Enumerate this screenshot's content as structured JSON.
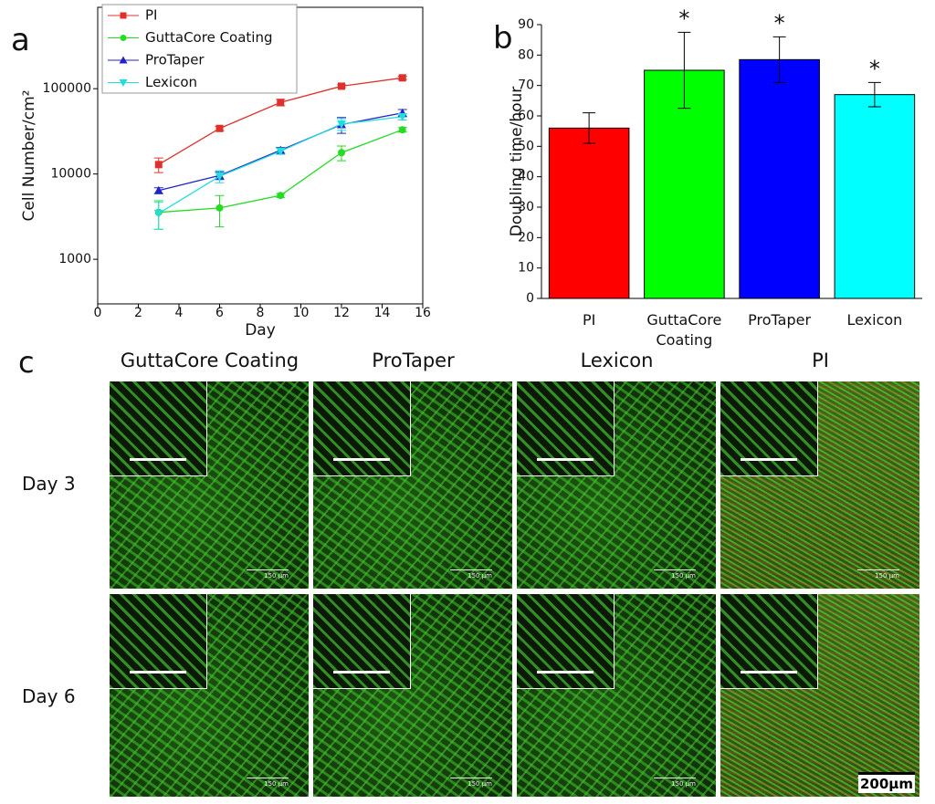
{
  "chart_data": [
    {
      "type": "line",
      "panel": "a",
      "x_label": "Day",
      "y_label": "Cell Number/cm²",
      "xlim": [
        0,
        16
      ],
      "xticks": [
        0,
        2,
        4,
        6,
        8,
        10,
        12,
        14,
        16
      ],
      "ylim": [
        300,
        900000
      ],
      "yticks": [
        1000,
        10000,
        100000
      ],
      "log_y": true,
      "legend": "upper-left",
      "x": [
        3,
        6,
        9,
        12,
        15
      ],
      "series": [
        {
          "name": "PI",
          "color": "#e0302c",
          "marker": "square",
          "values": [
            12900,
            34200,
            69000,
            107000,
            134000
          ],
          "errors": [
            2500,
            2000,
            6000,
            4000,
            6000
          ]
        },
        {
          "name": "GuttaCore Coating",
          "color": "#22dd22",
          "marker": "circle",
          "values": [
            3550,
            4000,
            5600,
            17800,
            33000
          ],
          "errors": [
            1300,
            1600,
            300,
            3500,
            2000
          ]
        },
        {
          "name": "ProTaper",
          "color": "#2222cc",
          "marker": "triangle-up",
          "values": [
            6400,
            9600,
            19000,
            38000,
            52000
          ],
          "errors": [
            500,
            1000,
            1500,
            8000,
            5000
          ]
        },
        {
          "name": "Lexicon",
          "color": "#22dddd",
          "marker": "triangle-down",
          "values": [
            3450,
            9400,
            18500,
            38500,
            47000
          ],
          "errors": [
            1200,
            1500,
            1500,
            6000,
            4000
          ]
        }
      ]
    },
    {
      "type": "bar",
      "panel": "b",
      "y_label": "Doubling time/hour",
      "categories": [
        "PI",
        "GuttaCore Coating",
        "ProTaper",
        "Lexicon"
      ],
      "values": [
        56,
        75,
        78.5,
        67
      ],
      "errors": [
        5,
        12.5,
        7.5,
        4
      ],
      "colors": [
        "#ff0000",
        "#00ff00",
        "#0000ff",
        "#00ffff"
      ],
      "significance": [
        null,
        "*",
        "*",
        "*"
      ],
      "ylim": [
        0,
        90
      ],
      "yticks": [
        0,
        10,
        20,
        30,
        40,
        50,
        60,
        70,
        80,
        90
      ]
    }
  ],
  "panel_c": {
    "label": "c",
    "columns": [
      "GuttaCore Coating",
      "ProTaper",
      "Lexicon",
      "PI"
    ],
    "rows": [
      "Day 3",
      "Day 6"
    ],
    "scale_label": "150 µm",
    "overall_scale_label": "200µm"
  }
}
